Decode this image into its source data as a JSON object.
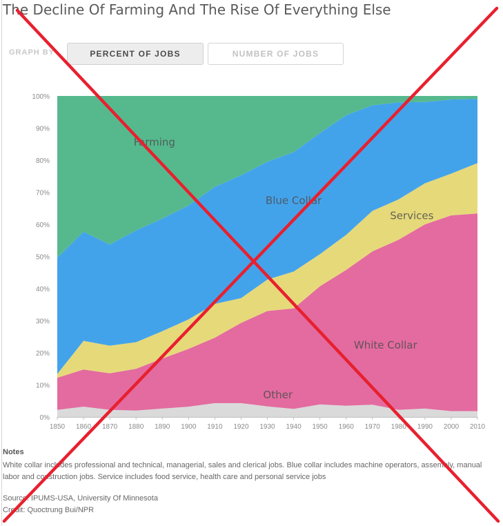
{
  "title": "The Decline Of Farming And The Rise Of Everything Else",
  "controls": {
    "graph_by_label": "GRAPH BY",
    "tabs": [
      "PERCENT OF JOBS",
      "NUMBER OF JOBS"
    ],
    "active_tab": "PERCENT OF JOBS"
  },
  "chart_data": {
    "type": "area",
    "stacked": true,
    "x": [
      1850,
      1860,
      1870,
      1880,
      1890,
      1900,
      1910,
      1920,
      1930,
      1940,
      1950,
      1960,
      1970,
      1980,
      1990,
      2000,
      2010
    ],
    "ylim": [
      0,
      100
    ],
    "yticks": [
      "0%",
      "10%",
      "20%",
      "30%",
      "40%",
      "50%",
      "60%",
      "70%",
      "80%",
      "90%",
      "100%"
    ],
    "xticks": [
      "1850",
      "1860",
      "1870",
      "1880",
      "1890",
      "1900",
      "1910",
      "1920",
      "1930",
      "1940",
      "1950",
      "1960",
      "1970",
      "1980",
      "1990",
      "2000",
      "2010"
    ],
    "grid": false,
    "series": [
      {
        "name": "Other",
        "color": "#dadada",
        "values": [
          2.2,
          3.2,
          2.2,
          2.0,
          2.6,
          3.2,
          4.3,
          4.3,
          3.3,
          2.5,
          3.9,
          3.5,
          3.8,
          2.2,
          2.6,
          1.8,
          1.8
        ]
      },
      {
        "name": "White Collar",
        "color": "#e36b9f",
        "values": [
          10.0,
          11.6,
          11.4,
          13.0,
          15.6,
          18.0,
          20.4,
          25.0,
          29.7,
          31.3,
          36.8,
          42.3,
          47.8,
          53.0,
          57.4,
          61.0,
          61.6
        ]
      },
      {
        "name": "Services",
        "color": "#e6d97a",
        "values": [
          1.2,
          8.9,
          8.6,
          8.3,
          8.5,
          9.2,
          10.5,
          7.7,
          9.8,
          11.5,
          10.0,
          10.9,
          12.6,
          12.6,
          12.8,
          13.0,
          15.7
        ]
      },
      {
        "name": "Blue Collar",
        "color": "#43a3ea",
        "values": [
          36.2,
          34.0,
          31.5,
          34.8,
          35.1,
          35.5,
          36.5,
          38.3,
          36.7,
          37.2,
          37.7,
          37.3,
          32.9,
          30.2,
          25.3,
          23.1,
          20.0
        ]
      },
      {
        "name": "Farming",
        "color": "#56b98e",
        "values": [
          50.4,
          42.3,
          46.3,
          41.9,
          38.2,
          34.1,
          28.3,
          24.7,
          20.5,
          17.5,
          11.6,
          6.0,
          2.9,
          2.0,
          1.9,
          1.1,
          0.9
        ]
      }
    ],
    "annotations": [
      "Farming",
      "Blue Collar",
      "Services",
      "White Collar",
      "Other"
    ]
  },
  "notes": {
    "heading": "Notes",
    "text": "White collar includes professional and technical, managerial, sales and clerical jobs. Blue collar includes machine operators, assembly, manual labor and construction jobs. Service includes food service, health care and personal service jobs"
  },
  "source": "Source: IPUMS-USA, University Of Minnesota",
  "credit": "Credit: Quoctrung Bui/NPR",
  "overlay": {
    "type": "red-x",
    "color": "#e8202f"
  }
}
